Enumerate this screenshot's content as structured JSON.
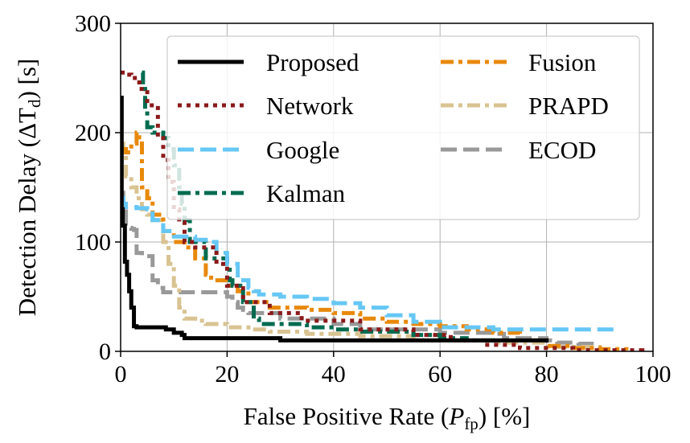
{
  "chart_data": {
    "type": "line",
    "title": "",
    "xlabel": {
      "main": "False Positive Rate (",
      "var": "P",
      "sub": "fp",
      "tail": ") [%]"
    },
    "ylabel": {
      "main": "Detection Delay (ΔT",
      "sub": "d",
      "tail": ") [s]"
    },
    "xlim": [
      0,
      100
    ],
    "ylim": [
      0,
      300
    ],
    "xticks": [
      0,
      20,
      40,
      60,
      80,
      100
    ],
    "yticks": [
      0,
      100,
      200,
      300
    ],
    "grid": true,
    "legend_position": "top-right",
    "series": [
      {
        "name": "Proposed",
        "color": "#000000",
        "style": "solid",
        "width": 5,
        "x": [
          0,
          0.2,
          0.4,
          0.8,
          1.2,
          1.6,
          2.0,
          2.5,
          3.0,
          8.0,
          8.5,
          10.0,
          11.5,
          12.0,
          28.0,
          30.0,
          73.0,
          80.0
        ],
        "y": [
          232,
          130,
          115,
          82,
          70,
          55,
          40,
          23,
          22,
          22,
          20,
          17,
          15,
          12,
          12,
          10,
          10,
          8
        ]
      },
      {
        "name": "Network",
        "color": "#8b1a1a",
        "style": "dotted",
        "width": 5,
        "x": [
          0,
          1.0,
          2.0,
          3.5,
          5.0,
          7.0,
          8.0,
          9.0,
          10.0,
          11.0,
          12.0,
          14.0,
          18.0,
          20.0,
          23.0,
          28.0,
          34.0,
          45.0,
          55.0,
          62.0,
          68.0,
          75.0,
          85.0,
          98.0
        ],
        "y": [
          255,
          253,
          250,
          240,
          225,
          195,
          175,
          155,
          130,
          118,
          100,
          95,
          80,
          60,
          45,
          35,
          28,
          20,
          15,
          10,
          6,
          3,
          1,
          0
        ]
      },
      {
        "name": "Google",
        "color": "#66c7f5",
        "style": "dashed",
        "width": 5,
        "x": [
          0,
          0.5,
          1.0,
          3.0,
          5.0,
          6.0,
          8.0,
          10.0,
          14.0,
          17.0,
          18.0,
          20.0,
          22.0,
          24.0,
          25.0,
          26.0,
          30.0,
          35.0,
          40.0,
          45.0,
          50.0,
          55.0,
          60.0,
          70.0,
          80.0,
          93.0
        ],
        "y": [
          140,
          135,
          132,
          131,
          130,
          120,
          110,
          105,
          102,
          100,
          90,
          80,
          65,
          58,
          55,
          52,
          50,
          48,
          44,
          40,
          33,
          27,
          22,
          20,
          20,
          20
        ]
      },
      {
        "name": "Kalman",
        "color": "#006b4f",
        "style": "dashdot",
        "width": 5,
        "x": [
          4.0,
          4.2,
          4.6,
          5.0,
          6.0,
          8.0,
          9.0,
          10.0,
          11.0,
          11.5,
          12.0,
          13.0,
          16.0,
          20.0,
          20.5,
          21.0,
          23.0,
          25.0,
          26.0,
          30.0,
          35.0,
          40.0,
          45.0,
          55.0,
          60.0,
          65.0,
          70.0
        ],
        "y": [
          255,
          240,
          220,
          205,
          200,
          195,
          185,
          170,
          150,
          135,
          120,
          100,
          85,
          80,
          65,
          60,
          45,
          30,
          25,
          25,
          22,
          20,
          18,
          15,
          12,
          10,
          8
        ]
      },
      {
        "name": "Fusion",
        "color": "#e8890c",
        "style": "dashdot",
        "width": 5,
        "x": [
          0,
          1.0,
          2.0,
          3.0,
          3.5,
          4.0,
          5.0,
          6.0,
          8.0,
          10.0,
          12.0,
          14.0,
          16.0,
          17.0,
          20.0,
          22.0,
          24.0,
          28.0,
          35.0,
          40.0,
          45.0,
          50.0,
          55.0,
          60.0,
          65.0,
          70.0,
          75.0,
          80.0,
          85.0,
          90.0,
          95.0
        ],
        "y": [
          185,
          182,
          190,
          200,
          192,
          150,
          140,
          125,
          110,
          100,
          95,
          85,
          70,
          65,
          60,
          55,
          45,
          40,
          38,
          35,
          30,
          27,
          25,
          23,
          20,
          17,
          10,
          5,
          3,
          2,
          1
        ]
      },
      {
        "name": "PRAPD",
        "color": "#d9c392",
        "style": "dashdot",
        "width": 5,
        "x": [
          0,
          0.5,
          1.0,
          2.0,
          3.0,
          4.0,
          5.0,
          6.0,
          8.0,
          9.0,
          10.0,
          11.0,
          12.0,
          14.0,
          16.0,
          20.0,
          24.0,
          28.0,
          35.0,
          45.0,
          55.0,
          70.0,
          80.0,
          90.0
        ],
        "y": [
          190,
          180,
          160,
          150,
          140,
          130,
          125,
          120,
          100,
          80,
          60,
          40,
          30,
          28,
          25,
          22,
          20,
          18,
          16,
          14,
          10,
          8,
          4,
          2
        ]
      },
      {
        "name": "ECOD",
        "color": "#999999",
        "style": "dashed",
        "width": 5,
        "x": [
          0,
          0.5,
          1.0,
          1.5,
          2.0,
          2.5,
          3.0,
          4.0,
          5.0,
          6.0,
          7.0,
          8.0,
          20.0,
          21.0,
          22.0,
          23.0,
          24.0,
          30.0,
          40.0,
          45.0,
          60.0,
          70.0,
          72.0,
          80.0,
          82.0,
          86.0,
          90.0
        ],
        "y": [
          145,
          128,
          115,
          113,
          112,
          111,
          90,
          88,
          87,
          65,
          58,
          54,
          50,
          45,
          40,
          38,
          35,
          30,
          25,
          20,
          17,
          16,
          12,
          10,
          8,
          7,
          7
        ]
      }
    ]
  }
}
